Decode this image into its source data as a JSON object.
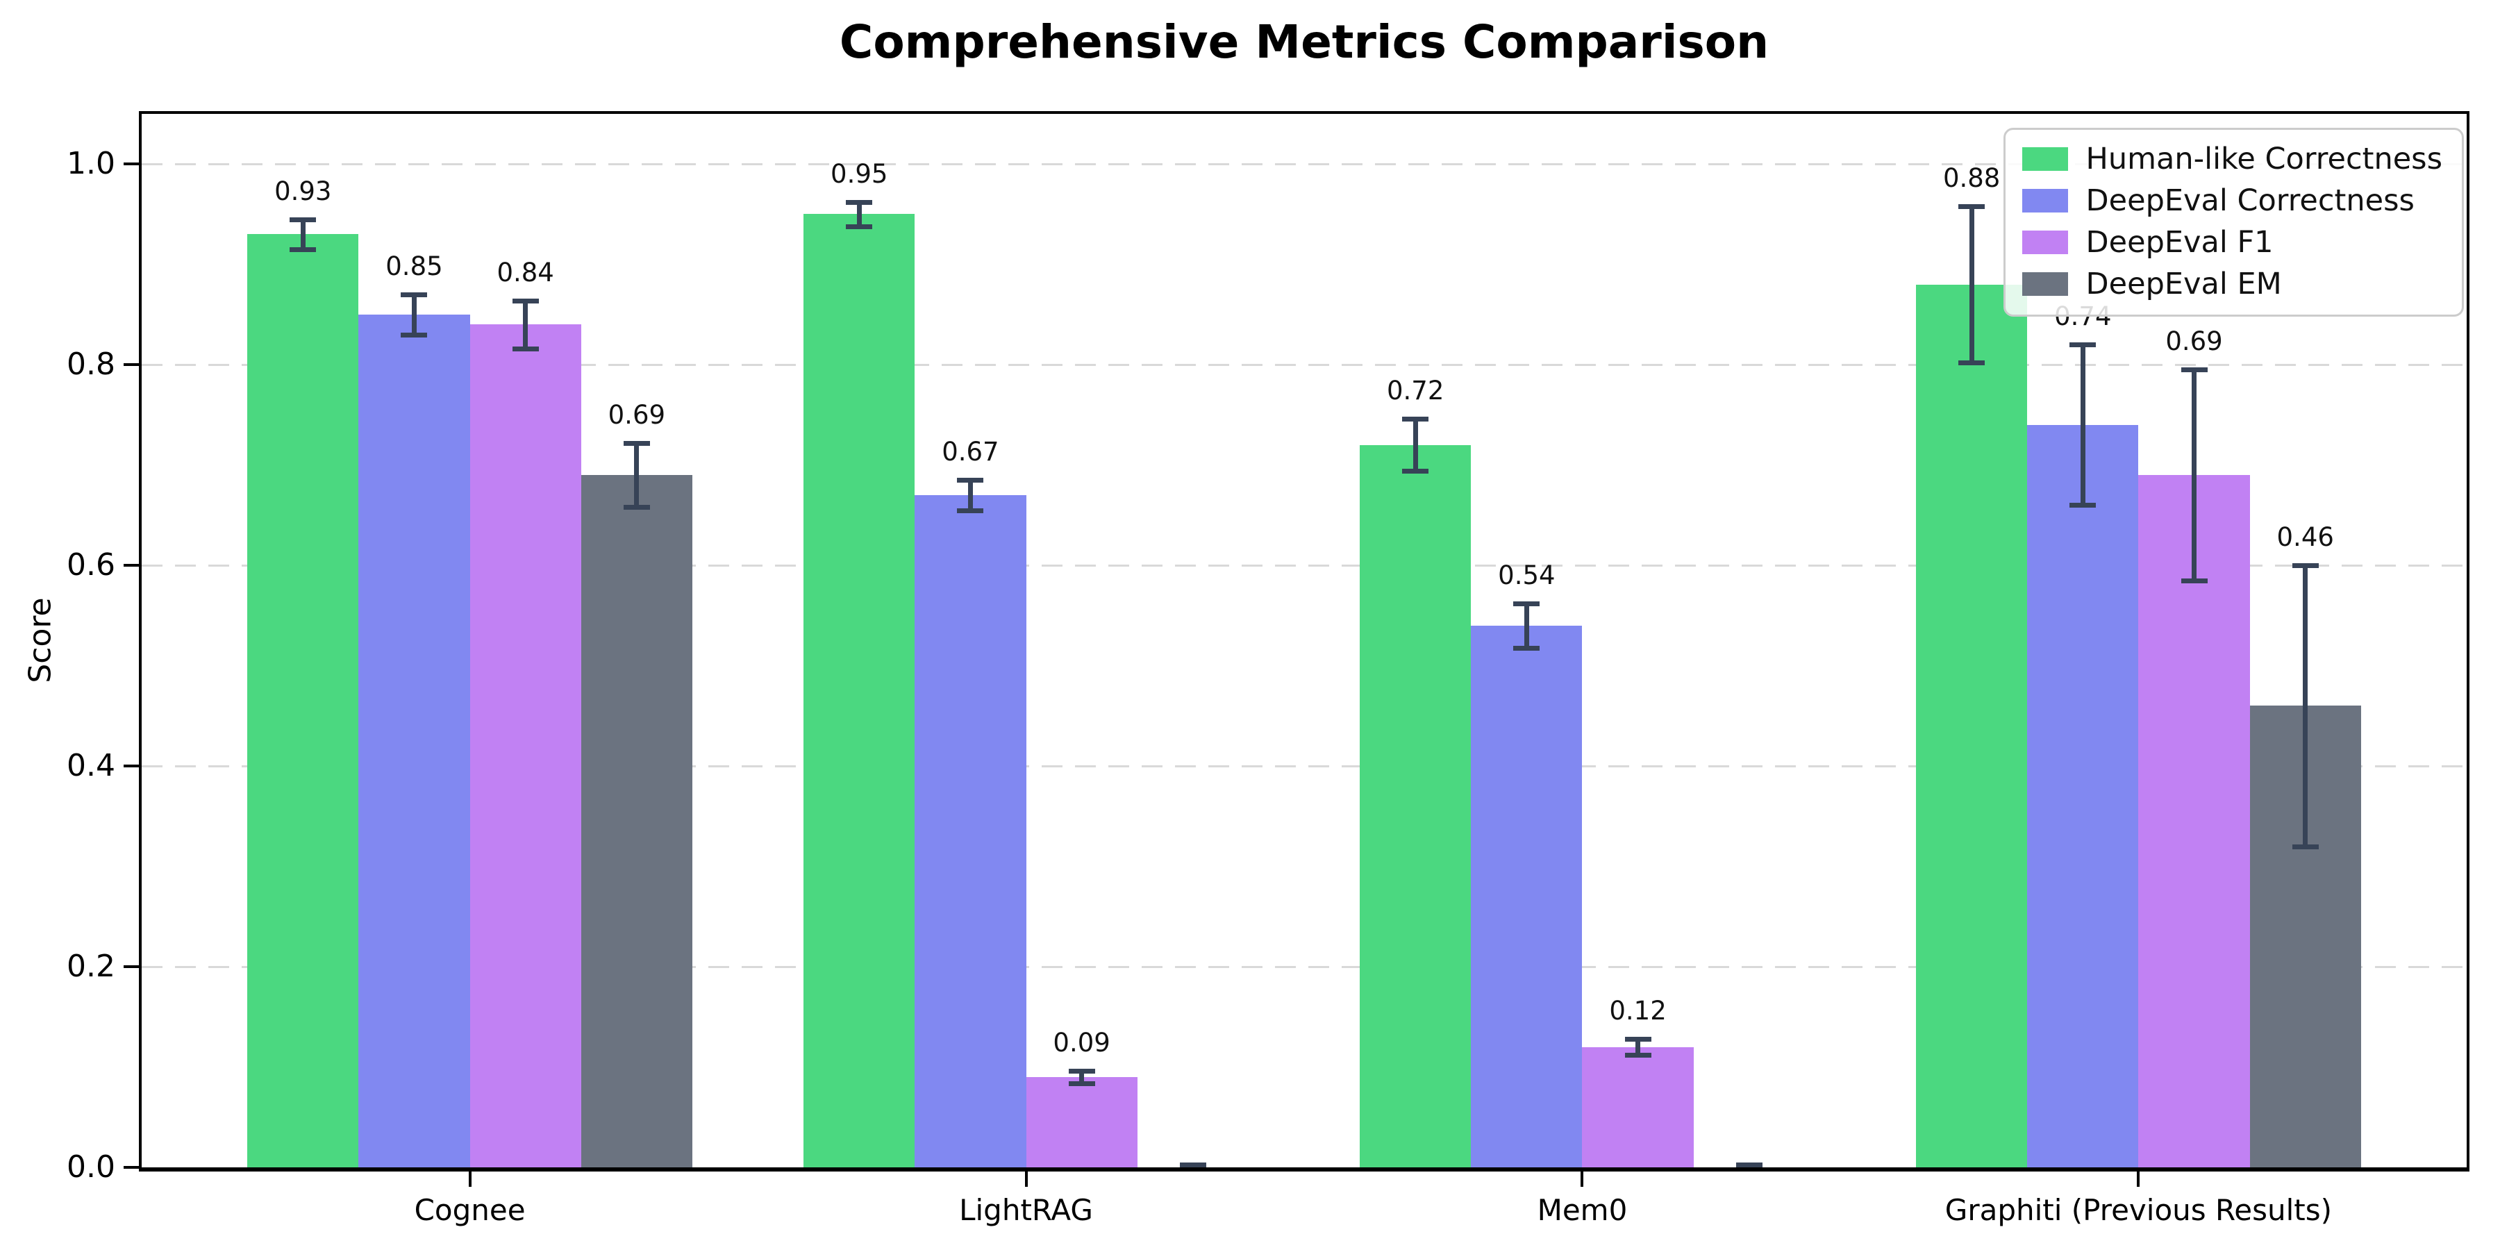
{
  "chart_data": {
    "type": "bar",
    "title": "Comprehensive Metrics Comparison",
    "ylabel": "Score",
    "categories": [
      "Cognee",
      "LightRAG",
      "Mem0",
      "Graphiti (Previous Results)"
    ],
    "series": [
      {
        "name": "Human-like Correctness",
        "color": "#4bd880",
        "values": [
          0.93,
          0.95,
          0.72,
          0.88
        ],
        "errors": [
          0.015,
          0.012,
          0.026,
          0.078
        ],
        "value_labels": [
          "0.93",
          "0.95",
          "0.72",
          "0.88"
        ]
      },
      {
        "name": "DeepEval Correctness",
        "color": "#8188f1",
        "values": [
          0.85,
          0.67,
          0.54,
          0.74
        ],
        "errors": [
          0.02,
          0.015,
          0.022,
          0.08
        ],
        "value_labels": [
          "0.85",
          "0.67",
          "0.54",
          "0.74"
        ]
      },
      {
        "name": "DeepEval F1",
        "color": "#c181f3",
        "values": [
          0.84,
          0.09,
          0.12,
          0.69
        ],
        "errors": [
          0.024,
          0.006,
          0.008,
          0.105
        ],
        "value_labels": [
          "0.84",
          "0.09",
          "0.12",
          "0.69"
        ]
      },
      {
        "name": "DeepEval EM",
        "color": "#6b7380",
        "values": [
          0.69,
          0.0,
          0.0,
          0.46
        ],
        "errors": [
          0.032,
          0.003,
          0.003,
          0.14
        ],
        "value_labels": [
          "0.69",
          null,
          null,
          "0.46"
        ]
      }
    ],
    "ylim": [
      0,
      1.05
    ],
    "yticks": [
      0.0,
      0.2,
      0.4,
      0.6,
      0.8,
      1.0
    ],
    "ytick_labels": [
      "0.0",
      "0.2",
      "0.4",
      "0.6",
      "0.8",
      "1.0"
    ],
    "grid": "horizontal-dashed",
    "grid_color": "#d9d9d9",
    "axis_color": "#000000",
    "error_bar_color": "#374357",
    "label_color": "#111111",
    "legend_position": "upper-right",
    "bar_width_category_units": 0.2
  }
}
